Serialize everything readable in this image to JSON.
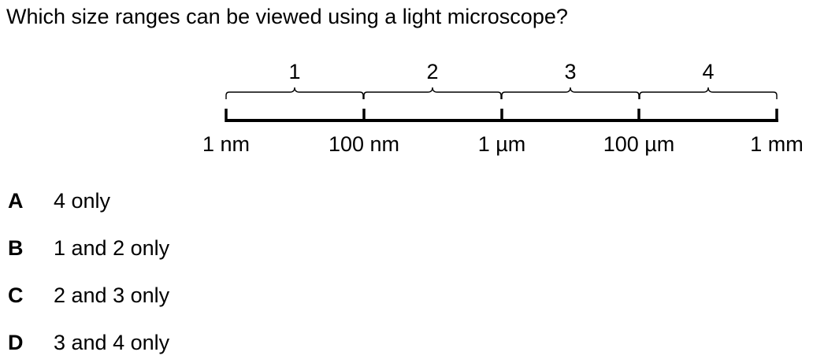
{
  "question": "Which size ranges can be viewed using a light microscope?",
  "scale": {
    "ranges": [
      "1",
      "2",
      "3",
      "4"
    ],
    "ticks": [
      "1 nm",
      "100 nm",
      "1 µm",
      "100 µm",
      "1 mm"
    ]
  },
  "options": [
    {
      "letter": "A",
      "text": "4 only"
    },
    {
      "letter": "B",
      "text": "1 and 2 only"
    },
    {
      "letter": "C",
      "text": "2 and 3 only"
    },
    {
      "letter": "D",
      "text": "3 and 4 only"
    }
  ]
}
